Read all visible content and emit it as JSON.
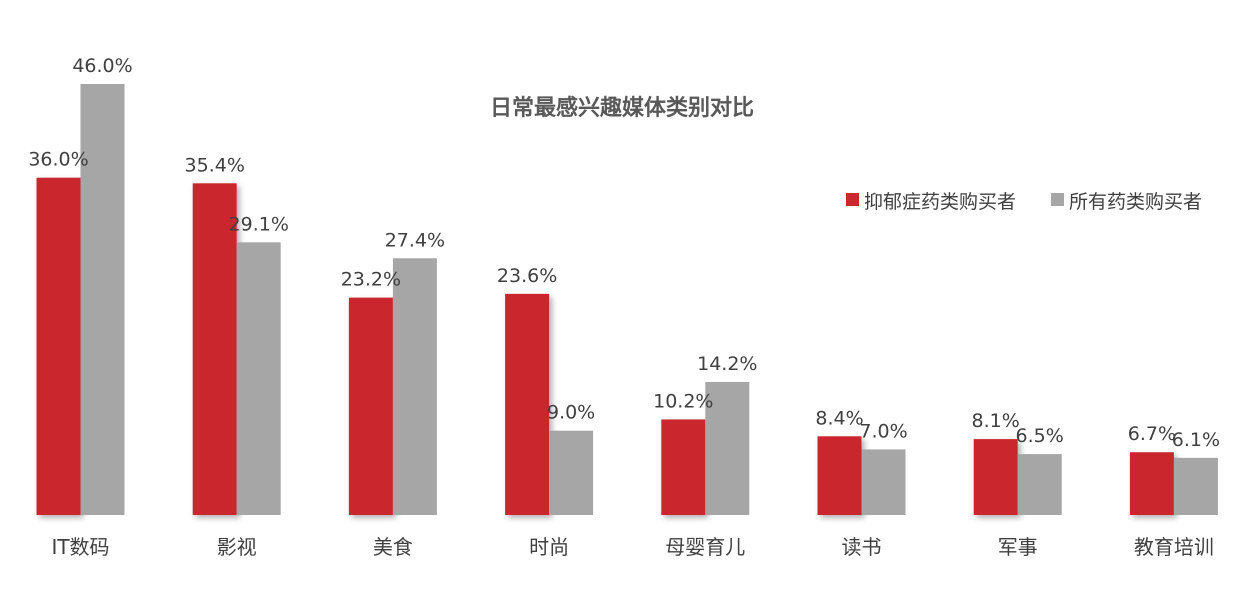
{
  "chart_data": {
    "type": "bar",
    "title": "日常最感兴趣媒体类别对比",
    "xlabel": "",
    "ylabel": "",
    "ylim": [
      0,
      50
    ],
    "grid": false,
    "legend_position": "right",
    "categories": [
      "IT数码",
      "影视",
      "美食",
      "时尚",
      "母婴育儿",
      "读书",
      "军事",
      "教育培训"
    ],
    "series": [
      {
        "name": "抑郁症药类购买者",
        "color": "#c9282e",
        "values": [
          36.0,
          35.4,
          23.2,
          23.6,
          10.2,
          8.4,
          8.1,
          6.7
        ],
        "labels": [
          "36.0%",
          "35.4%",
          "23.2%",
          "23.6%",
          "10.2%",
          "8.4%",
          "8.1%",
          "6.7%"
        ]
      },
      {
        "name": "所有药类购买者",
        "color": "#a6a6a6",
        "values": [
          46.0,
          29.1,
          27.4,
          9.0,
          14.2,
          7.0,
          6.5,
          6.1
        ],
        "labels": [
          "46.0%",
          "29.1%",
          "27.4%",
          "9.0%",
          "14.2%",
          "7.0%",
          "6.5%",
          "6.1%"
        ]
      }
    ]
  }
}
